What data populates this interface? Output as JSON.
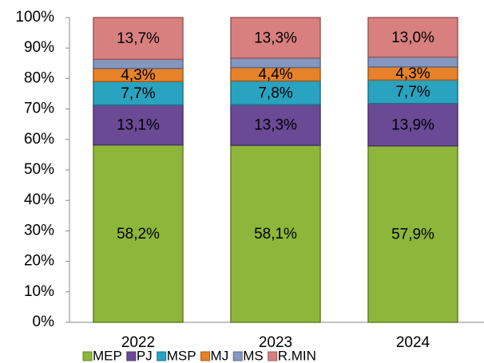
{
  "chart_data": {
    "type": "stacked_bar",
    "categories": [
      "2022",
      "2023",
      "2024"
    ],
    "series": [
      {
        "name": "MEP",
        "color": "#8db63b",
        "values": [
          58.2,
          58.1,
          57.9
        ],
        "value_labels": [
          "58,2%",
          "58,1%",
          "57,9%"
        ]
      },
      {
        "name": "PJ",
        "color": "#6a4a95",
        "values": [
          13.1,
          13.3,
          13.9
        ],
        "value_labels": [
          "13,1%",
          "13,3%",
          "13,9%"
        ]
      },
      {
        "name": "MSP",
        "color": "#2aa3c0",
        "values": [
          7.7,
          7.8,
          7.7
        ],
        "value_labels": [
          "7,7%",
          "7,8%",
          "7,7%"
        ]
      },
      {
        "name": "MJ",
        "color": "#e6822a",
        "values": [
          4.3,
          4.4,
          4.3
        ],
        "value_labels": [
          "4,3%",
          "4,4%",
          "4,3%"
        ]
      },
      {
        "name": "MS",
        "color": "#8497c0",
        "values": [
          3.0,
          3.1,
          3.2
        ]
      },
      {
        "name": "R.MIN",
        "color": "#d8807f",
        "values": [
          13.7,
          13.3,
          13.0
        ],
        "value_labels": [
          "13,7%",
          "13,3%",
          "13,0%"
        ]
      }
    ],
    "ylim": [
      0,
      100
    ],
    "yticks": [
      {
        "value": 0,
        "label": "0%"
      },
      {
        "value": 10,
        "label": "10%"
      },
      {
        "value": 20,
        "label": "20%"
      },
      {
        "value": 30,
        "label": "30%"
      },
      {
        "value": 40,
        "label": "40%"
      },
      {
        "value": 50,
        "label": "50%"
      },
      {
        "value": 60,
        "label": "60%"
      },
      {
        "value": 70,
        "label": "70%"
      },
      {
        "value": 80,
        "label": "80%"
      },
      {
        "value": 90,
        "label": "90%"
      },
      {
        "value": 100,
        "label": "100%"
      }
    ],
    "legend": "bottom"
  }
}
